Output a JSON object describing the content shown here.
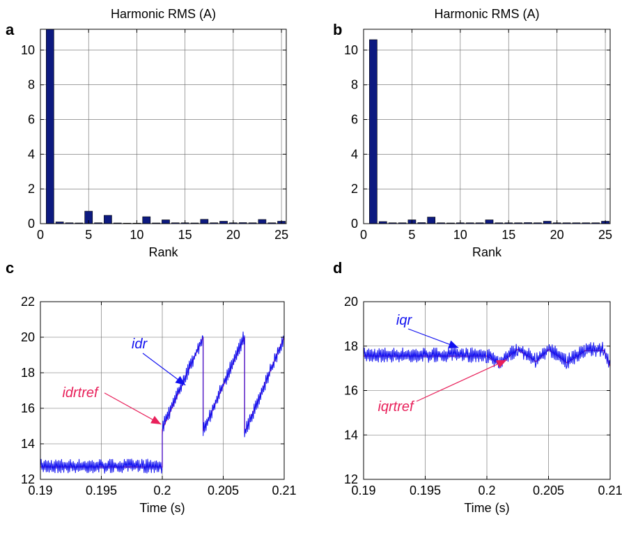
{
  "chart_data": [
    {
      "panel": "a",
      "type": "bar",
      "title": "Harmonic RMS (A)",
      "xlabel": "Rank",
      "ylabel": "",
      "xlim": [
        0,
        25.5
      ],
      "ylim": [
        0,
        11.2
      ],
      "xticks": [
        "0",
        "5",
        "10",
        "15",
        "20",
        "25"
      ],
      "yticks": [
        "0",
        "2",
        "4",
        "6",
        "8",
        "10"
      ],
      "grid": true,
      "bar_color": "#0d1a80",
      "categories": [
        1,
        2,
        3,
        4,
        5,
        6,
        7,
        8,
        9,
        10,
        11,
        12,
        13,
        14,
        15,
        16,
        17,
        18,
        19,
        20,
        21,
        22,
        23,
        24,
        25
      ],
      "values": [
        11.2,
        0.1,
        0.05,
        0.04,
        0.72,
        0.05,
        0.48,
        0.04,
        0.03,
        0.03,
        0.4,
        0.04,
        0.22,
        0.05,
        0.05,
        0.04,
        0.25,
        0.05,
        0.14,
        0.05,
        0.06,
        0.05,
        0.24,
        0.05,
        0.14
      ]
    },
    {
      "panel": "b",
      "type": "bar",
      "title": "Harmonic RMS (A)",
      "xlabel": "Rank",
      "ylabel": "",
      "xlim": [
        0,
        25.5
      ],
      "ylim": [
        0,
        11.2
      ],
      "xticks": [
        "0",
        "5",
        "10",
        "15",
        "20",
        "25"
      ],
      "yticks": [
        "0",
        "2",
        "4",
        "6",
        "8",
        "10"
      ],
      "grid": true,
      "bar_color": "#0d1a80",
      "categories": [
        1,
        2,
        3,
        4,
        5,
        6,
        7,
        8,
        9,
        10,
        11,
        12,
        13,
        14,
        15,
        16,
        17,
        18,
        19,
        20,
        21,
        22,
        23,
        24,
        25
      ],
      "values": [
        10.6,
        0.12,
        0.05,
        0.05,
        0.22,
        0.06,
        0.38,
        0.05,
        0.04,
        0.05,
        0.05,
        0.05,
        0.22,
        0.05,
        0.05,
        0.05,
        0.06,
        0.05,
        0.14,
        0.05,
        0.05,
        0.05,
        0.05,
        0.05,
        0.14
      ]
    },
    {
      "panel": "c",
      "type": "line",
      "title": "",
      "xlabel": "Time (s)",
      "ylabel": "",
      "xlim": [
        0.19,
        0.21
      ],
      "ylim": [
        12,
        22
      ],
      "xticks": [
        "0.19",
        "0.195",
        "0.2",
        "0.205",
        "0.21"
      ],
      "yticks": [
        "12",
        "14",
        "16",
        "18",
        "20",
        "22"
      ],
      "grid": true,
      "series": [
        {
          "name": "idrtref",
          "color": "#e8205a",
          "x": [
            0.19,
            0.2,
            0.2,
            0.20335,
            0.20335,
            0.20675,
            0.20675,
            0.21
          ],
          "y": [
            12.7,
            12.7,
            14.8,
            20.0,
            14.7,
            20.0,
            14.6,
            20.0
          ]
        },
        {
          "name": "idr",
          "color": "#1010f0",
          "x": [
            0.19,
            0.2,
            0.2,
            0.20335,
            0.20335,
            0.20675,
            0.20675,
            0.21
          ],
          "y": [
            12.75,
            12.75,
            14.9,
            20.0,
            14.7,
            20.1,
            14.6,
            20.0
          ],
          "ripple": 0.3
        }
      ],
      "annotations": [
        {
          "text": "idr",
          "color": "#1010f0",
          "points_to": [
            0.2019,
            17.3
          ]
        },
        {
          "text": "idrtref",
          "color": "#e8205a",
          "points_to": [
            0.1999,
            15.1
          ]
        }
      ]
    },
    {
      "panel": "d",
      "type": "line",
      "title": "",
      "xlabel": "Time (s)",
      "ylabel": "",
      "xlim": [
        0.19,
        0.21
      ],
      "ylim": [
        12,
        20
      ],
      "xticks": [
        "0.19",
        "0.195",
        "0.2",
        "0.205",
        "0.21"
      ],
      "yticks": [
        "12",
        "14",
        "16",
        "18",
        "20"
      ],
      "grid": true,
      "series": [
        {
          "name": "iqrtref",
          "color": "#e8205a",
          "x": [
            0.19,
            0.2,
            0.201,
            0.2025,
            0.204,
            0.205,
            0.2065,
            0.208,
            0.2095,
            0.21
          ],
          "y": [
            17.55,
            17.55,
            17.2,
            17.85,
            17.3,
            17.85,
            17.25,
            17.8,
            17.8,
            17.1
          ]
        },
        {
          "name": "iqr",
          "color": "#1010f0",
          "x": [
            0.19,
            0.2,
            0.201,
            0.2025,
            0.204,
            0.205,
            0.2065,
            0.208,
            0.2095,
            0.21
          ],
          "y": [
            17.6,
            17.6,
            17.25,
            17.9,
            17.35,
            17.9,
            17.3,
            17.85,
            17.85,
            17.15
          ],
          "ripple": 0.25
        }
      ],
      "annotations": [
        {
          "text": "iqr",
          "color": "#1010f0",
          "points_to": [
            0.1977,
            17.8
          ]
        },
        {
          "text": "iqrtref",
          "color": "#e8205a",
          "points_to": [
            0.2016,
            17.5
          ]
        }
      ]
    }
  ],
  "panel_letters": [
    "a",
    "b",
    "c",
    "d"
  ]
}
